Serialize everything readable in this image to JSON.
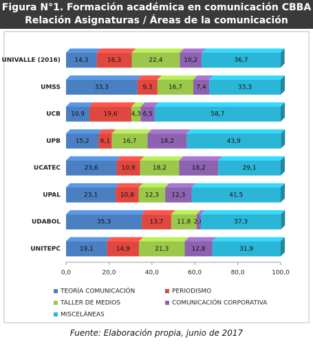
{
  "chart_data": {
    "type": "stacked-bar-horizontal",
    "title": "Figura N°1. Formación académica en comunicación CBBA",
    "subtitle": "Relación Asignaturas / Áreas de la comunicación",
    "source": "Fuente: Elaboración propia, junio de 2017",
    "categories": [
      "UNIVALLE (2016)",
      "UMSS",
      "UCB",
      "UPB",
      "UCATEC",
      "UPAL",
      "UDABOL",
      "UNITEPC"
    ],
    "series": [
      {
        "name": "TEORÍA COMUNICACIÓN",
        "color": "#4a7fc1",
        "values": [
          14.3,
          33.3,
          10.9,
          15.2,
          23.6,
          23.1,
          35.3,
          19.1
        ],
        "value_labels": [
          "14,3",
          "33,3",
          "10,9",
          "15,2",
          "23,6",
          "23,1",
          "35,3",
          "19,1"
        ]
      },
      {
        "name": "PERIODISMO",
        "color": "#e0473f",
        "values": [
          16.3,
          9.3,
          19.6,
          6.1,
          10.9,
          10.8,
          13.7,
          14.9
        ],
        "value_labels": [
          "16,3",
          "9,3",
          "19,6",
          "6,1",
          "10,9",
          "10,8",
          "13,7",
          "14,9"
        ]
      },
      {
        "name": "TALLER DE MEDIOS",
        "color": "#9bc84a",
        "values": [
          22.4,
          16.7,
          4.3,
          16.7,
          18.2,
          12.3,
          11.8,
          21.3
        ],
        "value_labels": [
          "22,4",
          "16,7",
          "4,3",
          "16,7",
          "18,2",
          "12,3",
          "11,8",
          "21,3"
        ]
      },
      {
        "name": "COMUNICACIÓN CORPORATIVA",
        "color": "#8d62b0",
        "values": [
          10.2,
          7.4,
          6.5,
          18.2,
          18.2,
          12.3,
          2.0,
          12.8
        ],
        "value_labels": [
          "10,2",
          "7,4",
          "6,5",
          "18,2",
          "18,2",
          "12,3",
          "2,0",
          "12,8"
        ]
      },
      {
        "name": "MISCELÁNEAS",
        "color": "#2bb5d6",
        "values": [
          36.7,
          33.3,
          58.7,
          43.9,
          29.1,
          41.5,
          37.3,
          31.9
        ],
        "value_labels": [
          "36,7",
          "33,3",
          "58,7",
          "43,9",
          "29,1",
          "41,5",
          "37,3",
          "31,9"
        ]
      }
    ],
    "xlim": [
      0,
      100
    ],
    "xticks": [
      {
        "value": 0,
        "label": "0,0"
      },
      {
        "value": 20,
        "label": "20,0"
      },
      {
        "value": 40,
        "label": "40,0"
      },
      {
        "value": 60,
        "label": "60,0"
      },
      {
        "value": 80,
        "label": "80,0"
      },
      {
        "value": 100,
        "label": "100,0"
      }
    ]
  }
}
